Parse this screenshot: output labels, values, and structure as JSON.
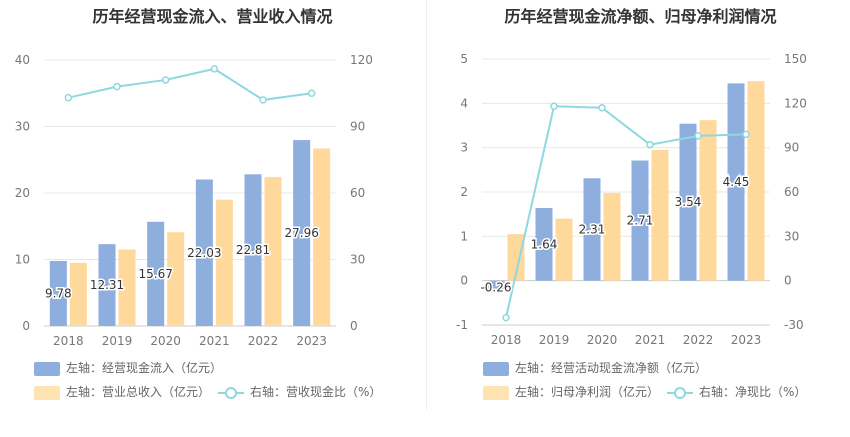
{
  "colors": {
    "bar_primary": "#8eaedd",
    "bar_secondary": "#ffd99b",
    "line": "#8ed8e0"
  },
  "chart_data": [
    {
      "type": "bar",
      "title": "历年经营现金流入、营业收入情况",
      "categories": [
        "2018",
        "2019",
        "2020",
        "2021",
        "2022",
        "2023"
      ],
      "ylim": [
        0,
        40
      ],
      "y_ticks": [
        "0",
        "10",
        "20",
        "30",
        "40"
      ],
      "y2lim": [
        0,
        120
      ],
      "y2_ticks": [
        "0",
        "30",
        "60",
        "90",
        "120"
      ],
      "grid": true,
      "legend_position": "bottom",
      "series": [
        {
          "name": "左轴：经营现金流入（亿元）",
          "axis": "left",
          "kind": "bar",
          "values": [
            9.78,
            12.31,
            15.67,
            22.03,
            22.81,
            27.96
          ],
          "labels": [
            "9.78",
            "12.31",
            "15.67",
            "22.03",
            "22.81",
            "27.96"
          ]
        },
        {
          "name": "左轴：营业总收入（亿元）",
          "axis": "left",
          "kind": "bar",
          "values": [
            9.5,
            11.5,
            14.1,
            19.0,
            22.4,
            26.7
          ]
        },
        {
          "name": "右轴：营收现金比（%）",
          "axis": "right",
          "kind": "line",
          "values": [
            103,
            108,
            111,
            116,
            102,
            105
          ]
        }
      ]
    },
    {
      "type": "bar",
      "title": "历年经营现金流净额、归母净利润情况",
      "categories": [
        "2018",
        "2019",
        "2020",
        "2021",
        "2022",
        "2023"
      ],
      "ylim": [
        -1,
        5
      ],
      "y_ticks": [
        "-1",
        "0",
        "1",
        "2",
        "3",
        "4",
        "5"
      ],
      "y2lim": [
        -30,
        150
      ],
      "y2_ticks": [
        "-30",
        "0",
        "30",
        "60",
        "90",
        "120",
        "150"
      ],
      "grid": true,
      "legend_position": "bottom",
      "series": [
        {
          "name": "左轴：经营活动现金流净额（亿元）",
          "axis": "left",
          "kind": "bar",
          "values": [
            -0.26,
            1.64,
            2.31,
            2.71,
            3.54,
            4.45
          ],
          "labels": [
            "-0.26",
            "1.64",
            "2.31",
            "2.71",
            "3.54",
            "4.45"
          ]
        },
        {
          "name": "左轴：归母净利润（亿元）",
          "axis": "left",
          "kind": "bar",
          "values": [
            1.05,
            1.4,
            1.98,
            2.95,
            3.62,
            4.5
          ]
        },
        {
          "name": "右轴：净现比（%）",
          "axis": "right",
          "kind": "line",
          "values": [
            -25,
            118,
            117,
            92,
            98,
            99
          ]
        }
      ]
    }
  ]
}
